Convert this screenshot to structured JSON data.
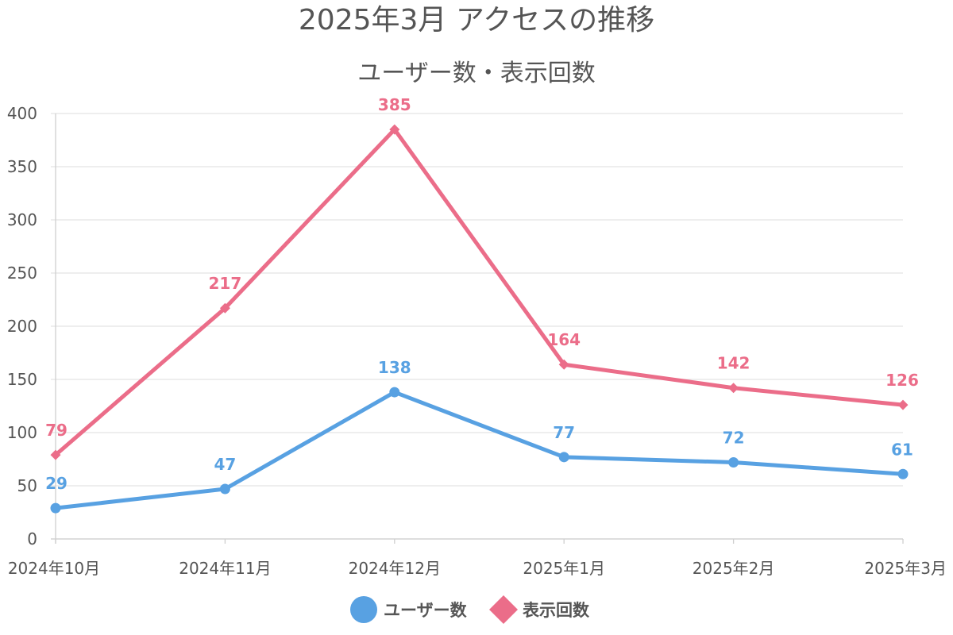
{
  "chart_data": {
    "type": "line",
    "title": "2025年3月 アクセスの推移",
    "subtitle": "ユーザー数・表示回数",
    "categories": [
      "2024年10月",
      "2024年11月",
      "2024年12月",
      "2025年1月",
      "2025年2月",
      "2025年3月"
    ],
    "ylim": [
      0,
      400
    ],
    "yticks": [
      0,
      50,
      100,
      150,
      200,
      250,
      300,
      350,
      400
    ],
    "grid": true,
    "legend_position": "bottom",
    "series": [
      {
        "name": "ユーザー数",
        "values": [
          29,
          47,
          138,
          77,
          72,
          61
        ],
        "color": "#58A1E2",
        "marker": "circle"
      },
      {
        "name": "表示回数",
        "values": [
          79,
          217,
          385,
          164,
          142,
          126
        ],
        "color": "#EB6D89",
        "marker": "diamond"
      }
    ]
  }
}
